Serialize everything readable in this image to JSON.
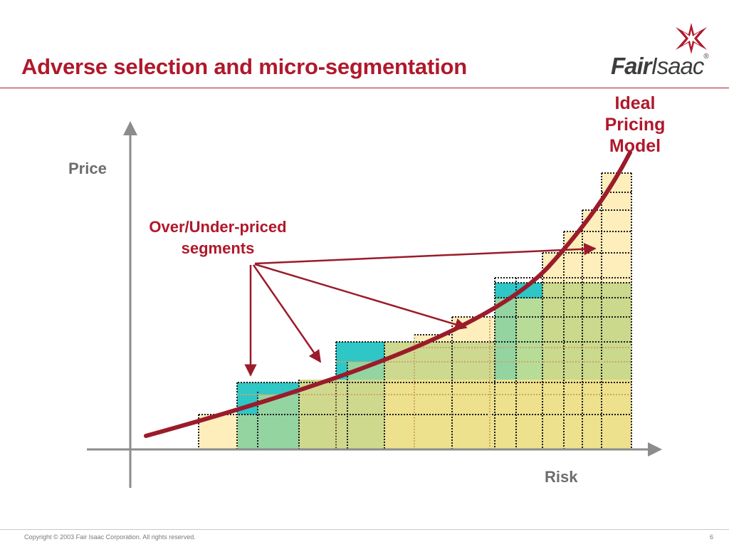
{
  "slide": {
    "title": "Adverse selection and micro-segmentation",
    "page_number": "6",
    "copyright": "Copyright © 2003 Fair Isaac Corporation. All rights reserved."
  },
  "logo": {
    "part1": "Fair",
    "part2": "Isaac",
    "registered": "®"
  },
  "diagram": {
    "y_axis_label": "Price",
    "x_axis_label": "Risk",
    "curve_label": [
      "Ideal",
      "Pricing",
      "Model"
    ],
    "callout_label": [
      "Over/Under-priced",
      "segments"
    ]
  },
  "colors": {
    "title": "#b0182b",
    "curve": "#9b1b2a",
    "axis": "#8c8c8c",
    "label_gray": "#6d6d6d",
    "fill_cream": "#fdeebb",
    "fill_yellow": "#eee18d",
    "fill_green": "#cdd98f",
    "fill_light_green": "#93d4a1",
    "fill_teal": "#2fc6c6"
  }
}
